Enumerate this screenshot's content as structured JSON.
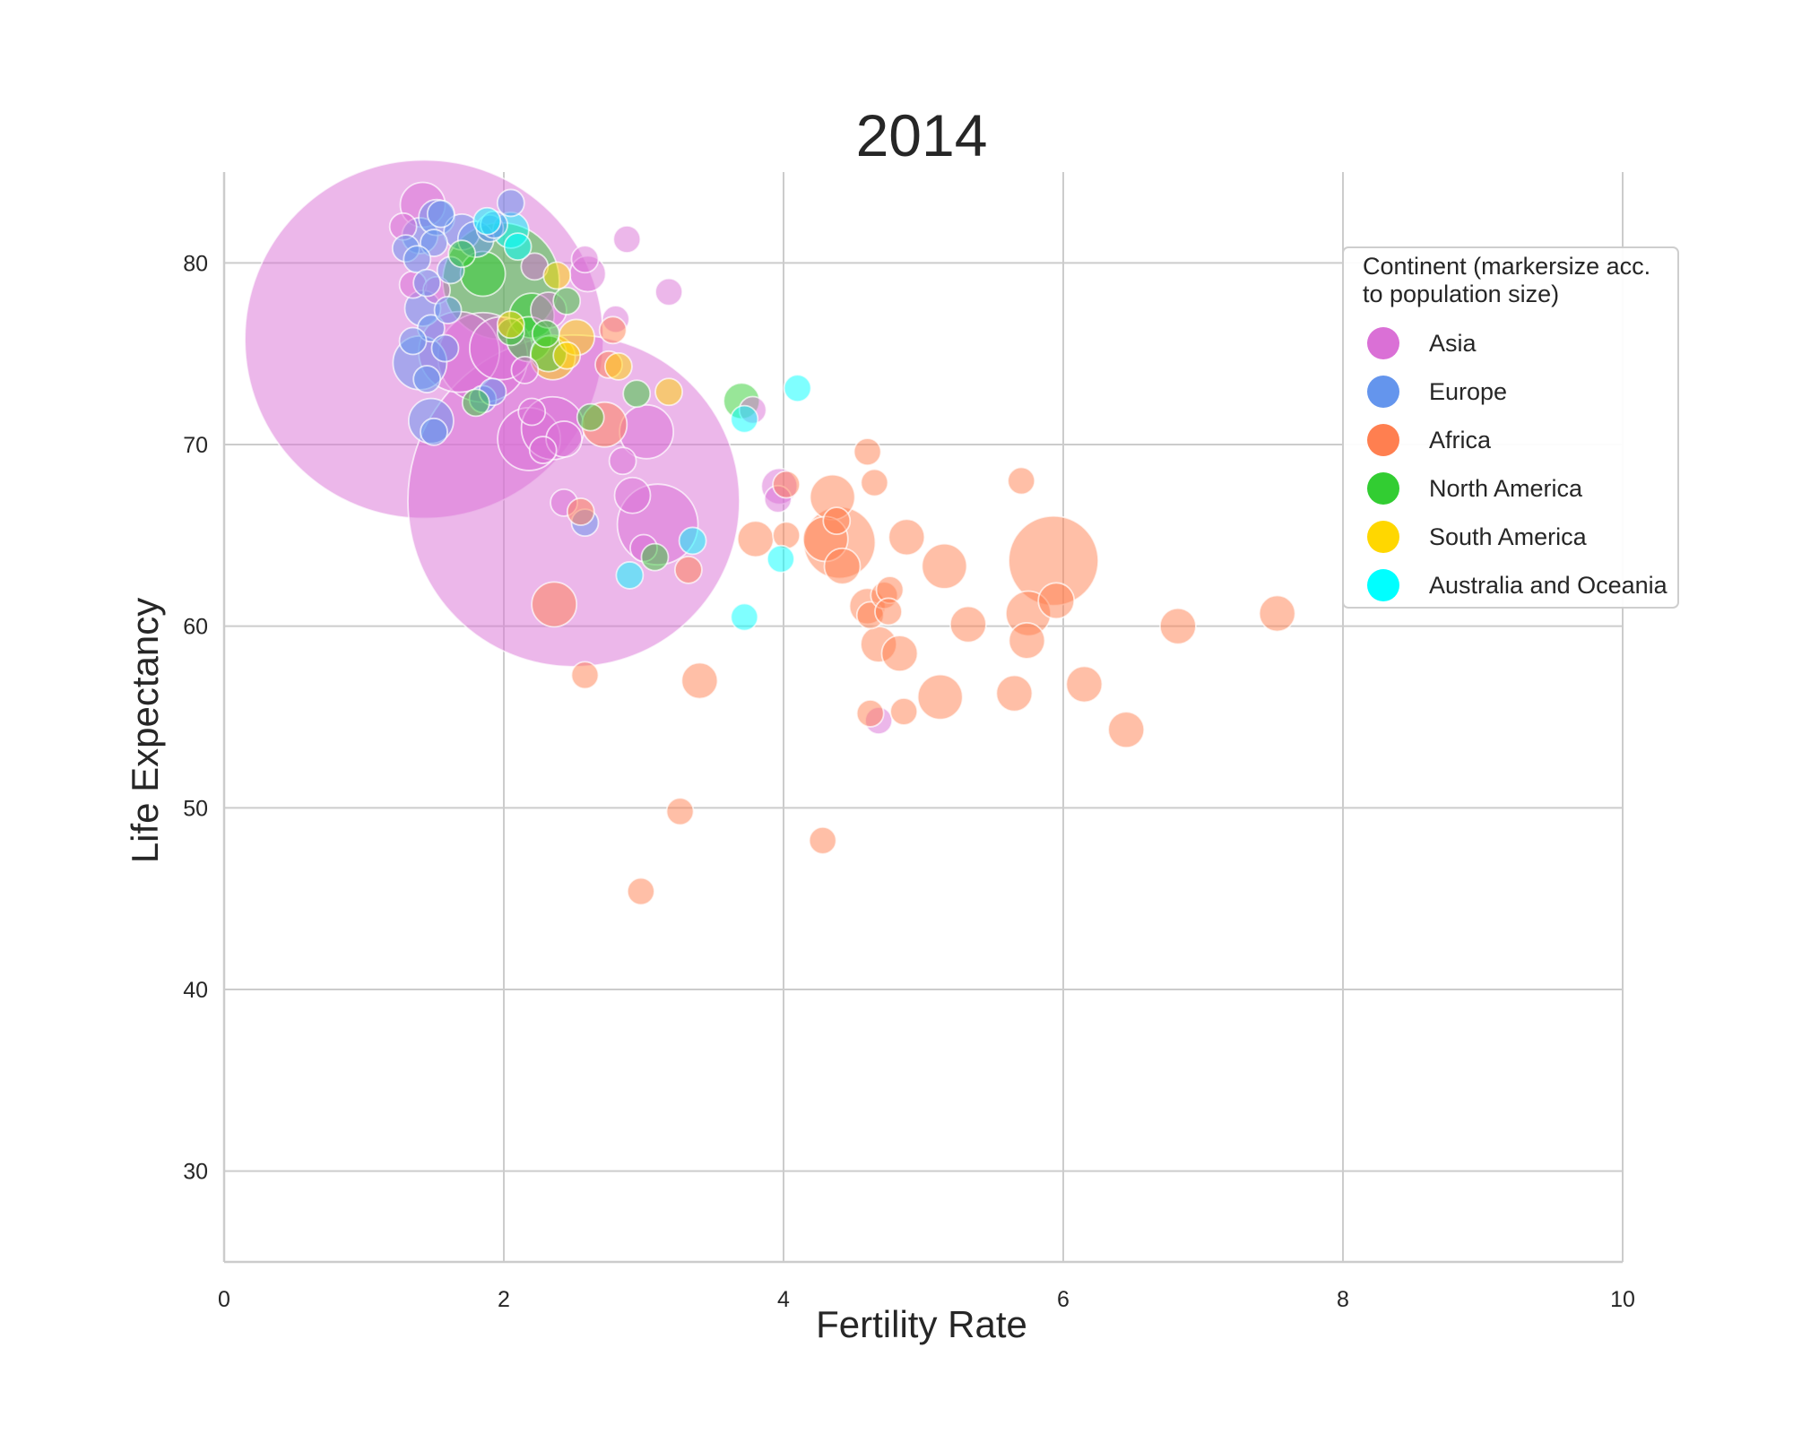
{
  "chart_data": {
    "type": "scatter",
    "title": "2014",
    "xlabel": "Fertility Rate",
    "ylabel": "Life Expectancy",
    "xlim": [
      0,
      10
    ],
    "ylim": [
      25,
      85
    ],
    "xticks": [
      0,
      2,
      4,
      6,
      8,
      10
    ],
    "yticks": [
      30,
      40,
      50,
      60,
      70,
      80
    ],
    "grid": true,
    "legend": {
      "title": "Continent (markersize acc.\nto population size)",
      "placement": "right"
    },
    "size_encoding": "population",
    "series": [
      {
        "name": "Asia",
        "color": "#da70d6",
        "points": [
          [
            1.42,
            83.2,
            5
          ],
          [
            1.28,
            82.0,
            3
          ],
          [
            1.35,
            78.8,
            3
          ],
          [
            1.52,
            78.5,
            3
          ],
          [
            1.43,
            75.8,
            40
          ],
          [
            1.68,
            75.1,
            9
          ],
          [
            1.85,
            74.8,
            10
          ],
          [
            1.98,
            75.3,
            7
          ],
          [
            2.22,
            79.8,
            3
          ],
          [
            2.58,
            80.2,
            3
          ],
          [
            2.6,
            79.4,
            4
          ],
          [
            2.88,
            81.3,
            3
          ],
          [
            3.18,
            78.4,
            3
          ],
          [
            2.8,
            76.9,
            3
          ],
          [
            2.32,
            77.4,
            4
          ],
          [
            2.15,
            74.1,
            3
          ],
          [
            2.18,
            70.3,
            7
          ],
          [
            2.35,
            70.9,
            7
          ],
          [
            2.43,
            70.3,
            4
          ],
          [
            2.28,
            69.7,
            3
          ],
          [
            2.2,
            71.8,
            3
          ],
          [
            2.5,
            66.9,
            37
          ],
          [
            3.02,
            70.7,
            6
          ],
          [
            2.85,
            69.1,
            3
          ],
          [
            2.92,
            67.2,
            4
          ],
          [
            3.1,
            65.6,
            9
          ],
          [
            3.78,
            71.9,
            3
          ],
          [
            3.97,
            67.7,
            4
          ],
          [
            3.96,
            67.0,
            3
          ],
          [
            2.43,
            66.8,
            3
          ],
          [
            4.68,
            54.8,
            3
          ],
          [
            3.0,
            64.3,
            3
          ]
        ]
      },
      {
        "name": "Europe",
        "color": "#6495ed",
        "points": [
          [
            1.3,
            80.8,
            3
          ],
          [
            1.4,
            81.5,
            4
          ],
          [
            1.52,
            82.5,
            4
          ],
          [
            1.55,
            82.7,
            3
          ],
          [
            1.7,
            81.7,
            4
          ],
          [
            1.8,
            81.3,
            4
          ],
          [
            1.9,
            81.9,
            3
          ],
          [
            1.93,
            82.1,
            3
          ],
          [
            2.05,
            83.3,
            3
          ],
          [
            1.5,
            81.1,
            3
          ],
          [
            1.38,
            80.2,
            3
          ],
          [
            1.62,
            79.6,
            3
          ],
          [
            1.45,
            78.9,
            3
          ],
          [
            1.42,
            77.5,
            4
          ],
          [
            1.48,
            76.4,
            3
          ],
          [
            1.35,
            75.7,
            3
          ],
          [
            1.58,
            75.3,
            3
          ],
          [
            1.4,
            74.5,
            6
          ],
          [
            1.45,
            73.6,
            3
          ],
          [
            1.48,
            71.3,
            5
          ],
          [
            1.5,
            70.7,
            3
          ],
          [
            1.85,
            72.5,
            3
          ],
          [
            1.92,
            72.9,
            3
          ],
          [
            2.58,
            65.7,
            3
          ],
          [
            1.6,
            77.4,
            3
          ]
        ]
      },
      {
        "name": "Africa",
        "color": "#ff7f50",
        "points": [
          [
            2.72,
            71.1,
            5
          ],
          [
            2.78,
            76.3,
            3
          ],
          [
            2.75,
            74.4,
            3
          ],
          [
            2.55,
            66.3,
            3
          ],
          [
            2.36,
            61.2,
            5
          ],
          [
            2.58,
            57.3,
            3
          ],
          [
            2.98,
            45.4,
            3
          ],
          [
            3.26,
            49.8,
            3
          ],
          [
            3.32,
            63.1,
            3
          ],
          [
            3.4,
            57.0,
            4
          ],
          [
            3.8,
            64.8,
            4
          ],
          [
            4.02,
            65.0,
            3
          ],
          [
            4.02,
            67.8,
            3
          ],
          [
            4.35,
            67.1,
            5
          ],
          [
            4.3,
            64.8,
            5
          ],
          [
            4.38,
            65.8,
            3
          ],
          [
            4.4,
            64.6,
            8
          ],
          [
            4.42,
            63.3,
            4
          ],
          [
            4.6,
            69.6,
            3
          ],
          [
            4.65,
            67.9,
            3
          ],
          [
            4.6,
            61.1,
            4
          ],
          [
            4.62,
            60.6,
            3
          ],
          [
            4.68,
            59.0,
            4
          ],
          [
            4.72,
            61.7,
            3
          ],
          [
            4.76,
            62.0,
            3
          ],
          [
            4.75,
            60.8,
            3
          ],
          [
            4.83,
            58.5,
            4
          ],
          [
            4.62,
            55.2,
            3
          ],
          [
            4.86,
            55.3,
            3
          ],
          [
            4.88,
            64.9,
            4
          ],
          [
            5.12,
            56.1,
            5
          ],
          [
            5.15,
            63.3,
            5
          ],
          [
            5.32,
            60.1,
            4
          ],
          [
            5.65,
            56.3,
            4
          ],
          [
            5.7,
            68.0,
            3
          ],
          [
            5.75,
            60.7,
            5
          ],
          [
            5.74,
            59.2,
            4
          ],
          [
            5.93,
            63.6,
            10
          ],
          [
            5.95,
            61.4,
            4
          ],
          [
            6.15,
            56.8,
            4
          ],
          [
            6.45,
            54.3,
            4
          ],
          [
            6.82,
            60.0,
            4
          ],
          [
            7.53,
            60.7,
            4
          ],
          [
            4.28,
            48.2,
            3
          ]
        ]
      },
      {
        "name": "North America",
        "color": "#32cd32",
        "points": [
          [
            1.85,
            79.4,
            5
          ],
          [
            1.98,
            79.0,
            13
          ],
          [
            2.2,
            77.1,
            5
          ],
          [
            2.18,
            75.8,
            5
          ],
          [
            2.3,
            76.1,
            3
          ],
          [
            2.45,
            77.9,
            3
          ],
          [
            2.32,
            75.0,
            4
          ],
          [
            1.8,
            72.3,
            3
          ],
          [
            2.95,
            72.8,
            3
          ],
          [
            3.7,
            72.4,
            4
          ],
          [
            3.08,
            63.8,
            3
          ],
          [
            2.62,
            71.5,
            3
          ],
          [
            2.05,
            76.2,
            3
          ],
          [
            1.7,
            80.5,
            3
          ]
        ]
      },
      {
        "name": "South America",
        "color": "#ffd700",
        "points": [
          [
            2.38,
            79.3,
            3
          ],
          [
            2.52,
            75.9,
            4
          ],
          [
            2.35,
            74.8,
            5
          ],
          [
            2.05,
            76.6,
            3
          ],
          [
            2.82,
            74.3,
            3
          ],
          [
            3.18,
            72.9,
            3
          ],
          [
            2.45,
            74.9,
            3
          ]
        ]
      },
      {
        "name": "Australia and Oceania",
        "color": "#00ffff",
        "points": [
          [
            1.88,
            82.3,
            3
          ],
          [
            2.05,
            81.8,
            4
          ],
          [
            2.1,
            80.9,
            3
          ],
          [
            4.1,
            73.1,
            3
          ],
          [
            3.72,
            71.4,
            3
          ],
          [
            3.35,
            64.7,
            3
          ],
          [
            2.9,
            62.8,
            3
          ],
          [
            3.98,
            63.7,
            3
          ],
          [
            3.72,
            60.5,
            3
          ]
        ]
      }
    ]
  }
}
